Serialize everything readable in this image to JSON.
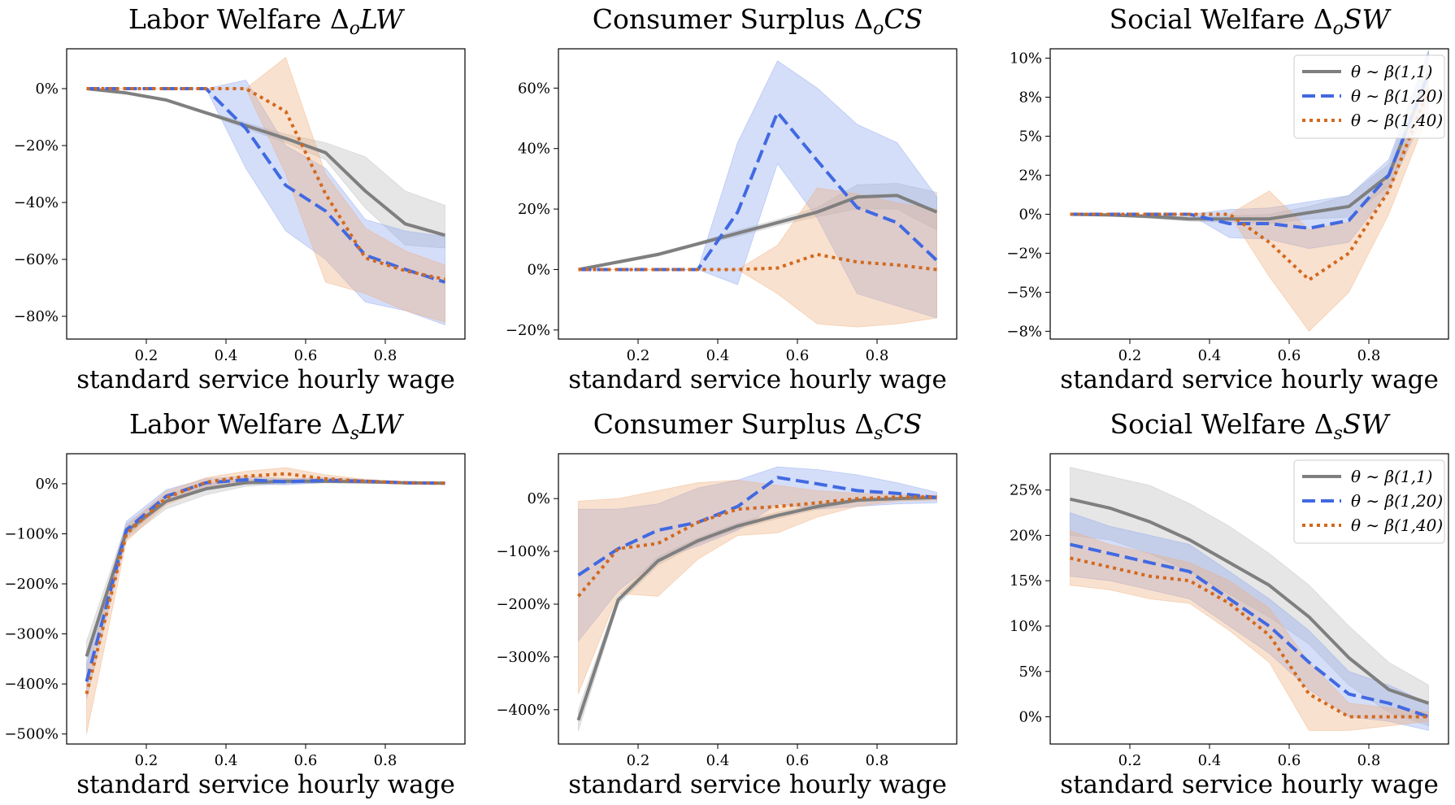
{
  "colors": {
    "gray": "#7f7f7f",
    "blue": "#4169e1",
    "orange": "#d2691e",
    "gray_fill": "#bdbdbd",
    "blue_fill": "#8fa8ee",
    "orange_fill": "#f0b080"
  },
  "chart_data": [
    {
      "type": "line",
      "title": "Labor Welfare ΔoLW",
      "title_main": "Labor Welfare Δ",
      "title_sub": "o",
      "title_tail": "LW",
      "xlabel": "standard service hourly wage",
      "ylabel": "",
      "x": [
        0.05,
        0.15,
        0.25,
        0.35,
        0.45,
        0.55,
        0.65,
        0.75,
        0.85,
        0.95
      ],
      "xlim": [
        0.0,
        1.0
      ],
      "ylim": [
        -88,
        14
      ],
      "xticks": [
        0.2,
        0.4,
        0.6,
        0.8
      ],
      "xtick_labels": [
        "0.2",
        "0.4",
        "0.6",
        "0.8"
      ],
      "yticks": [
        -80,
        -60,
        -40,
        -20,
        0
      ],
      "ytick_labels": [
        "−80%",
        "−60%",
        "−40%",
        "−20%",
        "0%"
      ],
      "legend": false,
      "series": [
        {
          "name": "θ ∼ β(1,1)",
          "color_key": "gray",
          "style": "solid",
          "values": [
            0,
            -1.5,
            -4,
            -8.5,
            -13,
            -17.5,
            -22.5,
            -36,
            -47.5,
            -51.5
          ],
          "lower": [
            0,
            -1.7,
            -4.3,
            -9,
            -14,
            -19,
            -25,
            -42,
            -55,
            -56
          ],
          "upper": [
            0,
            -1.3,
            -3.7,
            -8,
            -12,
            -16,
            -19,
            -24,
            -36,
            -41
          ]
        },
        {
          "name": "θ ∼ β(1,20)",
          "color_key": "blue",
          "style": "dashed",
          "values": [
            0,
            0,
            0,
            0,
            -14,
            -34,
            -43,
            -58.5,
            -63.5,
            -68
          ],
          "lower": [
            0,
            0,
            0,
            0,
            -28,
            -50,
            -60,
            -75,
            -78,
            -83
          ],
          "upper": [
            0,
            0,
            0,
            0,
            3,
            -20,
            -28,
            -46,
            -50,
            -52
          ]
        },
        {
          "name": "θ ∼ β(1,40)",
          "color_key": "orange",
          "style": "dotted",
          "values": [
            0,
            0,
            0,
            0,
            0,
            -8,
            -37,
            -59.5,
            -64,
            -67
          ],
          "lower": [
            0,
            0,
            0,
            0,
            0,
            -30,
            -68,
            -72,
            -78,
            -82
          ],
          "upper": [
            0,
            0,
            0,
            0,
            0,
            11,
            -30,
            -49,
            -57,
            -62
          ]
        }
      ]
    },
    {
      "type": "line",
      "title": "Consumer Surplus ΔoCS",
      "title_main": "Consumer Surplus Δ",
      "title_sub": "o",
      "title_tail": "CS",
      "xlabel": "standard service hourly wage",
      "ylabel": "",
      "x": [
        0.05,
        0.15,
        0.25,
        0.35,
        0.45,
        0.55,
        0.65,
        0.75,
        0.85,
        0.95
      ],
      "xlim": [
        0.0,
        1.0
      ],
      "ylim": [
        -23,
        73
      ],
      "xticks": [
        0.2,
        0.4,
        0.6,
        0.8
      ],
      "xtick_labels": [
        "0.2",
        "0.4",
        "0.6",
        "0.8"
      ],
      "yticks": [
        -20,
        0,
        20,
        40,
        60
      ],
      "ytick_labels": [
        "−20%",
        "0%",
        "20%",
        "40%",
        "60%"
      ],
      "legend": false,
      "series": [
        {
          "name": "θ ∼ β(1,1)",
          "color_key": "gray",
          "style": "solid",
          "values": [
            0,
            2.5,
            5,
            8.5,
            12,
            15.5,
            19,
            24,
            24.5,
            19
          ],
          "lower": [
            0,
            2,
            4.5,
            8,
            11,
            14.5,
            17.5,
            20,
            20,
            13
          ],
          "upper": [
            0,
            3,
            5.5,
            9,
            13,
            16.5,
            20.5,
            28,
            28.5,
            25.5
          ]
        },
        {
          "name": "θ ∼ β(1,20)",
          "color_key": "blue",
          "style": "dashed",
          "values": [
            0,
            0,
            0,
            0,
            19,
            52,
            36,
            20.5,
            15.5,
            3
          ],
          "lower": [
            0,
            0,
            0,
            0,
            -5,
            35,
            17,
            -8,
            -12,
            -16
          ],
          "upper": [
            0,
            0,
            0,
            0,
            42,
            69,
            60,
            48,
            42,
            24
          ]
        },
        {
          "name": "θ ∼ β(1,40)",
          "color_key": "orange",
          "style": "dotted",
          "values": [
            0,
            0,
            0,
            0,
            0,
            0.5,
            5,
            2.5,
            1.5,
            0
          ],
          "lower": [
            0,
            0,
            0,
            0,
            0,
            -8,
            -18,
            -19,
            -18,
            -16
          ],
          "upper": [
            0,
            0,
            0,
            0,
            0,
            8,
            27,
            25,
            22,
            20
          ]
        }
      ]
    },
    {
      "type": "line",
      "title": "Social Welfare ΔoSW",
      "title_main": "Social Welfare Δ",
      "title_sub": "o",
      "title_tail": "SW",
      "xlabel": "standard service hourly wage",
      "ylabel": "",
      "x": [
        0.05,
        0.15,
        0.25,
        0.35,
        0.45,
        0.55,
        0.65,
        0.75,
        0.85,
        0.95
      ],
      "xlim": [
        0.0,
        1.0
      ],
      "ylim": [
        -8,
        10.6
      ],
      "xticks": [
        0.2,
        0.4,
        0.6,
        0.8
      ],
      "xtick_labels": [
        "0.2",
        "0.4",
        "0.6",
        "0.8"
      ],
      "yticks": [
        -7.5,
        -5,
        -2.5,
        0,
        2.5,
        5,
        7.5,
        10
      ],
      "ytick_labels": [
        "−8%",
        "−5%",
        "−2%",
        "0%",
        "2%",
        "5%",
        "8%",
        "10%"
      ],
      "legend": true,
      "series": [
        {
          "name": "θ ∼ β(1,1)",
          "color_key": "gray",
          "style": "solid",
          "values": [
            0,
            -0.05,
            -0.15,
            -0.3,
            -0.3,
            -0.3,
            0.1,
            0.5,
            2.5,
            9
          ],
          "lower": [
            0,
            -0.1,
            -0.25,
            -0.45,
            -0.5,
            -0.6,
            -0.3,
            -0.2,
            1.8,
            7.5
          ],
          "upper": [
            0,
            0,
            -0.05,
            -0.15,
            -0.1,
            0,
            0.5,
            1.2,
            3.2,
            10.5
          ]
        },
        {
          "name": "θ ∼ β(1,20)",
          "color_key": "blue",
          "style": "dashed",
          "values": [
            0,
            0,
            0,
            0,
            -0.6,
            -0.6,
            -0.9,
            -0.4,
            2.5,
            9
          ],
          "lower": [
            0,
            0,
            0,
            0,
            -1.5,
            -1.6,
            -2.2,
            -1.8,
            1.5,
            7
          ],
          "upper": [
            0,
            0,
            0,
            0,
            0.3,
            0.4,
            0.8,
            1.2,
            3.5,
            10.5
          ]
        },
        {
          "name": "θ ∼ β(1,40)",
          "color_key": "orange",
          "style": "dotted",
          "values": [
            0,
            0,
            0,
            0,
            0,
            -1.8,
            -4.2,
            -2.5,
            1.5,
            8
          ],
          "lower": [
            0,
            0,
            0,
            0,
            0,
            -4,
            -7.5,
            -5,
            0,
            6.5
          ],
          "upper": [
            0,
            0,
            0,
            0,
            0,
            1.5,
            -1,
            -0.5,
            2.5,
            9.5
          ]
        }
      ]
    },
    {
      "type": "line",
      "title": "Labor Welfare ΔsLW",
      "title_main": "Labor Welfare Δ",
      "title_sub": "s",
      "title_tail": "LW",
      "xlabel": "standard service hourly wage",
      "ylabel": "",
      "x": [
        0.05,
        0.15,
        0.25,
        0.35,
        0.45,
        0.55,
        0.65,
        0.75,
        0.85,
        0.95
      ],
      "xlim": [
        0.0,
        1.0
      ],
      "ylim": [
        -520,
        60
      ],
      "xticks": [
        0.2,
        0.4,
        0.6,
        0.8
      ],
      "xtick_labels": [
        "0.2",
        "0.4",
        "0.6",
        "0.8"
      ],
      "yticks": [
        -500,
        -400,
        -300,
        -200,
        -100,
        0
      ],
      "ytick_labels": [
        "−500%",
        "−400%",
        "−300%",
        "−200%",
        "−100%",
        "0%"
      ],
      "legend": false,
      "series": [
        {
          "name": "θ ∼ β(1,1)",
          "color_key": "gray",
          "style": "solid",
          "values": [
            -345,
            -95,
            -35,
            -10,
            2,
            5,
            5,
            4,
            2,
            1
          ],
          "lower": [
            -375,
            -110,
            -50,
            -22,
            -5,
            0,
            2,
            2,
            1,
            0
          ],
          "upper": [
            -315,
            -80,
            -22,
            0,
            8,
            10,
            9,
            7,
            4,
            2
          ]
        },
        {
          "name": "θ ∼ β(1,20)",
          "color_key": "blue",
          "style": "dashed",
          "values": [
            -395,
            -92,
            -25,
            2,
            8,
            4,
            7,
            5,
            2,
            1
          ],
          "lower": [
            -430,
            -105,
            -38,
            -8,
            0,
            -2,
            2,
            2,
            0,
            0
          ],
          "upper": [
            -360,
            -75,
            -12,
            10,
            15,
            10,
            12,
            8,
            4,
            2
          ]
        },
        {
          "name": "θ ∼ β(1,40)",
          "color_key": "orange",
          "style": "dotted",
          "values": [
            -420,
            -100,
            -28,
            3,
            15,
            20,
            10,
            5,
            2,
            1
          ],
          "lower": [
            -500,
            -115,
            -42,
            -10,
            5,
            8,
            2,
            1,
            0,
            0
          ],
          "upper": [
            -380,
            -85,
            -15,
            12,
            25,
            32,
            18,
            9,
            4,
            2
          ]
        }
      ]
    },
    {
      "type": "line",
      "title": "Consumer Surplus ΔsCS",
      "title_main": "Consumer Surplus Δ",
      "title_sub": "s",
      "title_tail": "CS",
      "xlabel": "standard service hourly wage",
      "ylabel": "",
      "x": [
        0.05,
        0.15,
        0.25,
        0.35,
        0.45,
        0.55,
        0.65,
        0.75,
        0.85,
        0.95
      ],
      "xlim": [
        0.0,
        1.0
      ],
      "ylim": [
        -465,
        85
      ],
      "xticks": [
        0.2,
        0.4,
        0.6,
        0.8
      ],
      "xtick_labels": [
        "0.2",
        "0.4",
        "0.6",
        "0.8"
      ],
      "yticks": [
        -400,
        -300,
        -200,
        -100,
        0
      ],
      "ytick_labels": [
        "−400%",
        "−300%",
        "−200%",
        "−100%",
        "0%"
      ],
      "legend": false,
      "series": [
        {
          "name": "θ ∼ β(1,1)",
          "color_key": "gray",
          "style": "solid",
          "values": [
            -420,
            -192,
            -118,
            -80,
            -52,
            -32,
            -15,
            -3,
            0,
            2
          ],
          "lower": [
            -440,
            -200,
            -126,
            -86,
            -58,
            -38,
            -20,
            -6,
            -2,
            0
          ],
          "upper": [
            -400,
            -184,
            -110,
            -74,
            -46,
            -26,
            -10,
            0,
            2,
            4
          ]
        },
        {
          "name": "θ ∼ β(1,20)",
          "color_key": "blue",
          "style": "dashed",
          "values": [
            -145,
            -95,
            -60,
            -45,
            -15,
            40,
            28,
            15,
            10,
            2
          ],
          "lower": [
            -270,
            -175,
            -115,
            -90,
            -60,
            -10,
            -20,
            -15,
            -10,
            -8
          ],
          "upper": [
            -20,
            -20,
            -10,
            20,
            35,
            60,
            55,
            45,
            30,
            12
          ]
        },
        {
          "name": "θ ∼ β(1,40)",
          "color_key": "orange",
          "style": "dotted",
          "values": [
            -185,
            -95,
            -85,
            -45,
            -20,
            -15,
            -8,
            0,
            3,
            3
          ],
          "lower": [
            -370,
            -180,
            -185,
            -115,
            -70,
            -65,
            -35,
            -15,
            -5,
            -3
          ],
          "upper": [
            -5,
            0,
            15,
            30,
            35,
            25,
            15,
            10,
            8,
            6
          ]
        }
      ]
    },
    {
      "type": "line",
      "title": "Social Welfare ΔsSW",
      "title_main": "Social Welfare Δ",
      "title_sub": "s",
      "title_tail": "SW",
      "xlabel": "standard service hourly wage",
      "ylabel": "",
      "x": [
        0.05,
        0.15,
        0.25,
        0.35,
        0.45,
        0.55,
        0.65,
        0.75,
        0.85,
        0.95
      ],
      "xlim": [
        0.0,
        1.0
      ],
      "ylim": [
        -3,
        29
      ],
      "xticks": [
        0.2,
        0.4,
        0.6,
        0.8
      ],
      "xtick_labels": [
        "0.2",
        "0.4",
        "0.6",
        "0.8"
      ],
      "yticks": [
        0,
        5,
        10,
        15,
        20,
        25
      ],
      "ytick_labels": [
        "0%",
        "5%",
        "10%",
        "15%",
        "20%",
        "25%"
      ],
      "legend": true,
      "series": [
        {
          "name": "θ ∼ β(1,1)",
          "color_key": "gray",
          "style": "solid",
          "values": [
            24,
            23,
            21.5,
            19.5,
            17,
            14.5,
            11,
            6.5,
            3,
            1.5
          ],
          "lower": [
            20,
            19.5,
            18,
            16,
            13.5,
            11,
            8,
            3.5,
            0.5,
            -1
          ],
          "upper": [
            27.5,
            26.5,
            25.5,
            23.5,
            21,
            18,
            14.5,
            10,
            6,
            3.5
          ]
        },
        {
          "name": "θ ∼ β(1,20)",
          "color_key": "blue",
          "style": "dashed",
          "values": [
            19,
            18,
            17,
            16,
            13,
            10,
            6,
            2.5,
            1.5,
            0
          ],
          "lower": [
            15.5,
            15,
            14,
            13,
            10,
            7,
            3,
            0,
            -0.5,
            -1.5
          ],
          "upper": [
            22.5,
            21,
            20,
            19,
            16,
            13,
            9.5,
            5,
            3.5,
            1.5
          ]
        },
        {
          "name": "θ ∼ β(1,40)",
          "color_key": "orange",
          "style": "dotted",
          "values": [
            17.5,
            16.5,
            15.5,
            15,
            12.5,
            9,
            2.5,
            0,
            0,
            0
          ],
          "lower": [
            14.5,
            14,
            13,
            12.5,
            9.5,
            6,
            -1.5,
            -1.5,
            -1,
            -0.5
          ],
          "upper": [
            20.5,
            19,
            18,
            17,
            15,
            12,
            6,
            1.5,
            1,
            0.5
          ]
        }
      ]
    }
  ]
}
